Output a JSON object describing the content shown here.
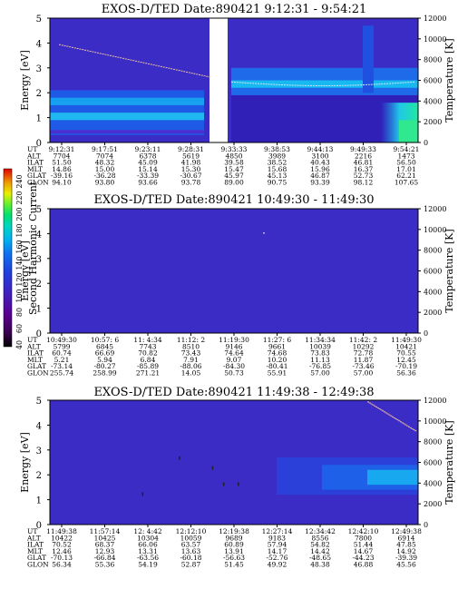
{
  "colorbar": {
    "label": "Second Harmonic Current",
    "ticks": [
      "40",
      "60",
      "80",
      "100",
      "120",
      "140",
      "160",
      "180",
      "200",
      "220",
      "240"
    ],
    "colors": [
      "#000000",
      "#3a0050",
      "#5a0090",
      "#4020c0",
      "#2040e0",
      "#1060f0",
      "#00a0f0",
      "#00d0d0",
      "#00e080",
      "#40f040",
      "#c0f000",
      "#f0f000",
      "#f0a000",
      "#f04000",
      "#e00000"
    ]
  },
  "chart_data": [
    {
      "type": "heatmap",
      "title": "EXOS-D/TED   Date:890421   9:12:31 - 9:54:21",
      "ylabel": "Energy [eV]",
      "y2label": "Temperature [K]",
      "ylim": [
        0,
        5
      ],
      "y2lim": [
        0,
        12000
      ],
      "yticks": [
        "0",
        "1",
        "2",
        "3",
        "4",
        "5"
      ],
      "y2ticks": [
        "0",
        "2000",
        "4000",
        "6000",
        "8000",
        "10000",
        "12000"
      ],
      "row_labels": [
        "UT",
        "ALT",
        "ILAT",
        "MLT",
        "GLAT",
        "GLON"
      ],
      "columns": [
        [
          "9:12:31",
          "7704",
          "51.50",
          "14.86",
          "-39.16",
          "94.10"
        ],
        [
          "9:17:51",
          "7074",
          "48.32",
          "15.00",
          "-36.28",
          "93.80"
        ],
        [
          "9:23:11",
          "6378",
          "45.09",
          "15.14",
          "-33.39",
          "93.66"
        ],
        [
          "9:28:31",
          "5619",
          "41.98",
          "15.30",
          "-30.67",
          "93.78"
        ],
        [
          "9:33:33",
          "4850",
          "39.58",
          "15.47",
          "45.97",
          "89.00"
        ],
        [
          "9:38:53",
          "3989",
          "38.52",
          "15.68",
          "45.13",
          "90.75"
        ],
        [
          "9:44:13",
          "3100",
          "40.43",
          "15.96",
          "46.87",
          "93.39"
        ],
        [
          "9:49:33",
          "2216",
          "46.81",
          "16.37",
          "52.73",
          "98.12"
        ],
        [
          "9:54:21",
          "1473",
          "56.50",
          "17.01",
          "62.21",
          "107.65"
        ]
      ],
      "data_gap": [
        3.3,
        3.8
      ]
    },
    {
      "type": "heatmap",
      "title": "EXOS-D/TED   Date:890421   10:49:30 - 11:49:30",
      "ylabel": "Energy [eV]",
      "y2label": "Temperature [K]",
      "ylim": [
        0,
        5
      ],
      "y2lim": [
        0,
        12000
      ],
      "yticks": [
        "0",
        "1",
        "2",
        "3",
        "4",
        "5"
      ],
      "y2ticks": [
        "0",
        "2000",
        "4000",
        "6000",
        "8000",
        "10000",
        "12000"
      ],
      "row_labels": [
        "UT",
        "ALT",
        "ILAT",
        "MLT",
        "GLAT",
        "GLON"
      ],
      "columns": [
        [
          "10:49:30",
          "5799",
          "60.74",
          "5.21",
          "-73.14",
          "255.74"
        ],
        [
          "10:57: 6",
          "6845",
          "66.69",
          "5.94",
          "-80.27",
          "258.99"
        ],
        [
          "11: 4:34",
          "7743",
          "70.82",
          "6.84",
          "-85.89",
          "271.21"
        ],
        [
          "11:12: 2",
          "8510",
          "73.43",
          "7.91",
          "-88.06",
          "14.05"
        ],
        [
          "11:19:30",
          "9146",
          "74.64",
          "9.07",
          "-84.30",
          "50.73"
        ],
        [
          "11:27: 6",
          "9661",
          "74.68",
          "10.20",
          "-80.41",
          "55.91"
        ],
        [
          "11:34:34",
          "10039",
          "73.83",
          "11.13",
          "-76.85",
          "57.00"
        ],
        [
          "11:42: 2",
          "10292",
          "72.78",
          "11.87",
          "-73.46",
          "57.00"
        ],
        [
          "11:49:30",
          "10421",
          "70.55",
          "12.45",
          "-70.19",
          "56.36"
        ]
      ]
    },
    {
      "type": "heatmap",
      "title": "EXOS-D/TED   Date:890421   11:49:38 - 12:49:38",
      "ylabel": "Energy [eV]",
      "y2label": "Temperature [K]",
      "ylim": [
        0,
        5
      ],
      "y2lim": [
        0,
        12000
      ],
      "yticks": [
        "0",
        "1",
        "2",
        "3",
        "4",
        "5"
      ],
      "y2ticks": [
        "0",
        "2000",
        "4000",
        "6000",
        "8000",
        "10000",
        "12000"
      ],
      "row_labels": [
        "UT",
        "ALT",
        "ILAT",
        "MLT",
        "GLAT",
        "GLON"
      ],
      "columns": [
        [
          "11:49:38",
          "10422",
          "70.52",
          "12.46",
          "-70.13",
          "56.34"
        ],
        [
          "11:57:14",
          "10425",
          "68.37",
          "12.93",
          "-66.84",
          "55.36"
        ],
        [
          "12: 4:42",
          "10304",
          "66.06",
          "13.31",
          "-63.56",
          "54.19"
        ],
        [
          "12:12:10",
          "10059",
          "63.57",
          "13.63",
          "-60.18",
          "52.87"
        ],
        [
          "12:19:38",
          "9689",
          "60.89",
          "13.91",
          "-56.63",
          "51.45"
        ],
        [
          "12:27:14",
          "9183",
          "57.94",
          "14.17",
          "-52.76",
          "49.92"
        ],
        [
          "12:34:42",
          "8556",
          "54.82",
          "14.42",
          "-48.65",
          "48.38"
        ],
        [
          "12:42:10",
          "7800",
          "51.44",
          "14.67",
          "-44.23",
          "46.88"
        ],
        [
          "12:49:38",
          "6914",
          "47.85",
          "14.92",
          "-39.39",
          "45.56"
        ]
      ]
    }
  ]
}
